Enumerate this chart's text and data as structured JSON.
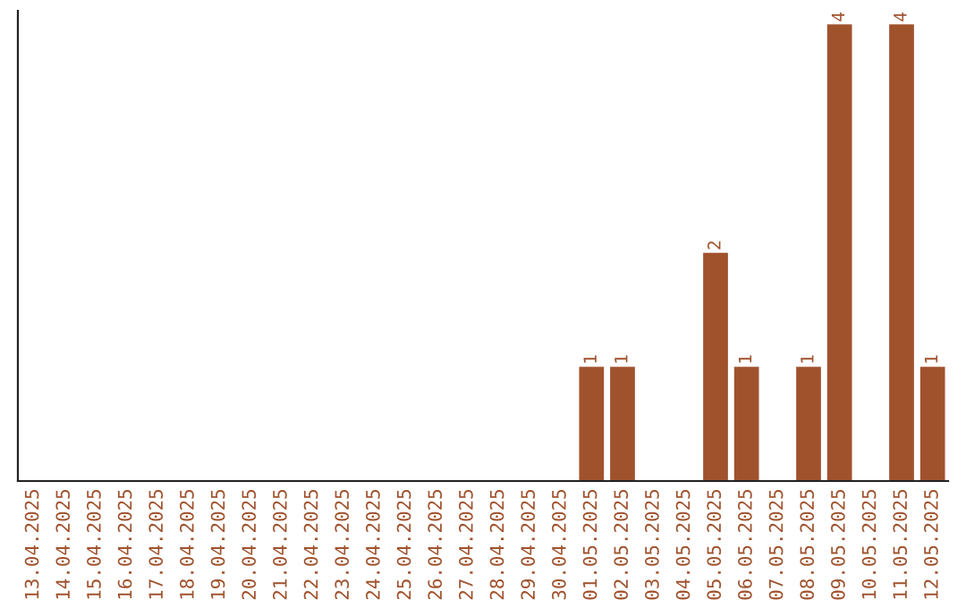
{
  "chart_data": {
    "type": "bar",
    "categories": [
      "13.04.2025",
      "14.04.2025",
      "15.04.2025",
      "16.04.2025",
      "17.04.2025",
      "18.04.2025",
      "19.04.2025",
      "20.04.2025",
      "21.04.2025",
      "22.04.2025",
      "23.04.2025",
      "24.04.2025",
      "25.04.2025",
      "26.04.2025",
      "27.04.2025",
      "28.04.2025",
      "29.04.2025",
      "30.04.2025",
      "01.05.2025",
      "02.05.2025",
      "03.05.2025",
      "04.05.2025",
      "05.05.2025",
      "06.05.2025",
      "07.05.2025",
      "08.05.2025",
      "09.05.2025",
      "10.05.2025",
      "11.05.2025",
      "12.05.2025"
    ],
    "values": [
      null,
      null,
      null,
      null,
      null,
      null,
      null,
      null,
      null,
      null,
      null,
      null,
      null,
      null,
      null,
      null,
      null,
      null,
      1,
      1,
      null,
      null,
      2,
      1,
      null,
      1,
      4,
      null,
      4,
      1
    ],
    "data_labels": true,
    "color": "#a0522d"
  }
}
